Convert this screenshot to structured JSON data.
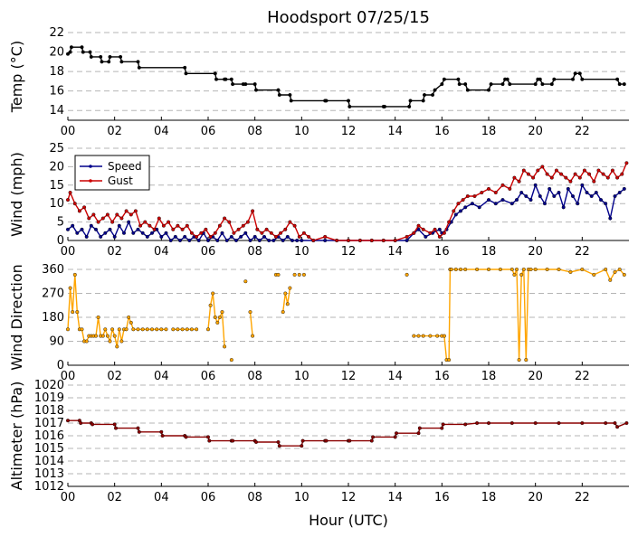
{
  "chart_data": {
    "type": "line",
    "title": "Hoodsport 07/25/15",
    "xlabel": "Hour (UTC)",
    "x_ticks": [
      "00",
      "02",
      "04",
      "06",
      "08",
      "10",
      "12",
      "14",
      "16",
      "18",
      "20",
      "22"
    ],
    "xlim": [
      0,
      24
    ],
    "panels": [
      {
        "name": "temp",
        "ylabel": "Temp (°C)",
        "ylim": [
          13,
          22
        ],
        "yticks": [
          14,
          16,
          18,
          20,
          22
        ],
        "series": [
          {
            "color": "#000000",
            "x": [
              0.0,
              0.1,
              0.15,
              0.6,
              0.65,
              0.95,
              1.0,
              1.4,
              1.45,
              1.75,
              1.8,
              2.25,
              2.3,
              3.0,
              3.05,
              5.0,
              5.05,
              6.3,
              6.35,
              6.7,
              6.75,
              7.0,
              7.05,
              7.5,
              7.6,
              8.0,
              8.05,
              9.0,
              9.05,
              9.5,
              9.55,
              11.0,
              11.05,
              12.0,
              12.05,
              13.5,
              13.55,
              14.6,
              14.65,
              15.2,
              15.25,
              15.6,
              15.7,
              16.0,
              16.1,
              16.7,
              16.75,
              17.0,
              17.1,
              18.0,
              18.1,
              18.6,
              18.7,
              18.8,
              18.9,
              20.0,
              20.1,
              20.2,
              20.3,
              20.7,
              20.8,
              21.6,
              21.7,
              21.9,
              22.0,
              23.5,
              23.6,
              23.8
            ],
            "y": [
              19.8,
              20.0,
              20.5,
              20.5,
              20.0,
              20.0,
              19.5,
              19.5,
              19.0,
              19.0,
              19.5,
              19.5,
              19.0,
              19.0,
              18.4,
              18.4,
              17.8,
              17.8,
              17.2,
              17.2,
              17.2,
              17.2,
              16.7,
              16.7,
              16.7,
              16.7,
              16.1,
              16.1,
              15.6,
              15.6,
              15.0,
              15.0,
              15.0,
              15.0,
              14.4,
              14.4,
              14.4,
              14.4,
              15.0,
              15.0,
              15.6,
              15.6,
              16.1,
              16.7,
              17.2,
              17.2,
              16.7,
              16.7,
              16.1,
              16.1,
              16.7,
              16.7,
              17.2,
              17.2,
              16.7,
              16.7,
              17.2,
              17.2,
              16.7,
              16.7,
              17.2,
              17.2,
              17.8,
              17.8,
              17.2,
              17.2,
              16.7,
              16.7
            ]
          }
        ]
      },
      {
        "name": "wind",
        "ylabel": "Wind (mph)",
        "ylim": [
          0,
          25
        ],
        "yticks": [
          0,
          5,
          10,
          15,
          20,
          25
        ],
        "legend": "top-left",
        "series": [
          {
            "name": "Speed",
            "color": "#00008b",
            "x": [
              0.0,
              0.2,
              0.4,
              0.6,
              0.8,
              1.0,
              1.2,
              1.4,
              1.6,
              1.8,
              2.0,
              2.2,
              2.4,
              2.6,
              2.8,
              3.0,
              3.2,
              3.4,
              3.6,
              3.8,
              4.0,
              4.2,
              4.4,
              4.6,
              4.8,
              5.0,
              5.2,
              5.4,
              5.6,
              5.8,
              6.0,
              6.2,
              6.4,
              6.6,
              6.8,
              7.0,
              7.2,
              7.4,
              7.6,
              7.8,
              8.0,
              8.2,
              8.4,
              8.6,
              8.8,
              9.0,
              9.2,
              9.4,
              9.6,
              9.8,
              10.0,
              10.5,
              11.0,
              11.5,
              12.0,
              12.5,
              13.0,
              13.5,
              14.0,
              14.5,
              14.8,
              15.0,
              15.3,
              15.6,
              15.9,
              16.0,
              16.2,
              16.4,
              16.6,
              16.8,
              17.0,
              17.3,
              17.6,
              18.0,
              18.3,
              18.6,
              19.0,
              19.2,
              19.4,
              19.6,
              19.8,
              20.0,
              20.2,
              20.4,
              20.6,
              20.8,
              21.0,
              21.2,
              21.4,
              21.6,
              21.8,
              22.0,
              22.2,
              22.4,
              22.6,
              22.8,
              23.0,
              23.2,
              23.4,
              23.6,
              23.8
            ],
            "y": [
              3,
              4,
              2,
              3,
              1,
              4,
              3,
              1,
              2,
              3,
              1,
              4,
              2,
              5,
              2,
              3,
              2,
              1,
              2,
              3,
              1,
              2,
              0,
              1,
              0,
              1,
              0,
              1,
              0,
              2,
              0,
              1,
              0,
              2,
              0,
              1,
              0,
              1,
              2,
              0,
              1,
              0,
              1,
              0,
              0,
              1,
              0,
              1,
              0,
              0,
              0,
              0,
              0,
              0,
              0,
              0,
              0,
              0,
              0,
              0,
              2,
              3,
              1,
              2,
              3,
              2,
              3,
              5,
              7,
              8,
              9,
              10,
              9,
              11,
              10,
              11,
              10,
              11,
              13,
              12,
              11,
              15,
              12,
              10,
              14,
              12,
              13,
              9,
              14,
              12,
              10,
              15,
              13,
              12,
              13,
              11,
              10,
              6,
              12,
              13,
              14
            ]
          },
          {
            "name": "Gust",
            "color": "#cc0000",
            "x": [
              0.0,
              0.1,
              0.3,
              0.5,
              0.7,
              0.9,
              1.1,
              1.3,
              1.5,
              1.7,
              1.9,
              2.1,
              2.3,
              2.5,
              2.7,
              2.9,
              3.1,
              3.3,
              3.5,
              3.7,
              3.9,
              4.1,
              4.3,
              4.5,
              4.7,
              4.9,
              5.1,
              5.3,
              5.5,
              5.7,
              5.9,
              6.1,
              6.3,
              6.5,
              6.7,
              6.9,
              7.1,
              7.3,
              7.5,
              7.7,
              7.9,
              8.1,
              8.3,
              8.5,
              8.7,
              8.9,
              9.1,
              9.3,
              9.5,
              9.7,
              9.9,
              10.1,
              10.3,
              10.5,
              11.0,
              11.5,
              12.0,
              12.5,
              13.0,
              13.5,
              14.0,
              14.5,
              14.8,
              15.0,
              15.2,
              15.5,
              15.7,
              15.9,
              16.1,
              16.3,
              16.5,
              16.7,
              16.9,
              17.1,
              17.4,
              17.7,
              18.0,
              18.3,
              18.6,
              18.9,
              19.1,
              19.3,
              19.5,
              19.7,
              19.9,
              20.1,
              20.3,
              20.5,
              20.7,
              20.9,
              21.1,
              21.3,
              21.5,
              21.7,
              21.9,
              22.1,
              22.3,
              22.5,
              22.7,
              22.9,
              23.1,
              23.3,
              23.5,
              23.7,
              23.9
            ],
            "y": [
              11,
              13,
              10,
              8,
              9,
              6,
              7,
              5,
              6,
              7,
              5,
              7,
              6,
              8,
              7,
              8,
              4,
              5,
              4,
              3,
              6,
              4,
              5,
              3,
              4,
              3,
              4,
              2,
              1,
              2,
              3,
              1,
              2,
              4,
              6,
              5,
              2,
              3,
              4,
              5,
              8,
              3,
              2,
              3,
              2,
              1,
              2,
              3,
              5,
              4,
              1,
              2,
              1,
              0,
              1,
              0,
              0,
              0,
              0,
              0,
              0,
              1,
              2,
              4,
              3,
              2,
              3,
              1,
              2,
              5,
              8,
              10,
              11,
              12,
              12,
              13,
              14,
              13,
              15,
              14,
              17,
              16,
              19,
              18,
              17,
              19,
              20,
              18,
              17,
              19,
              18,
              17,
              16,
              18,
              17,
              19,
              18,
              16,
              19,
              18,
              17,
              19,
              17,
              18,
              21
            ]
          }
        ]
      },
      {
        "name": "direction",
        "ylabel": "Wind Direction",
        "ylim": [
          0,
          360
        ],
        "yticks": [
          0,
          90,
          180,
          270,
          360
        ],
        "series": [
          {
            "color": "#ffa500",
            "segments": [
              {
                "x": [
                  0.0,
                  0.1,
                  0.2,
                  0.3,
                  0.4,
                  0.5,
                  0.6,
                  0.7,
                  0.8,
                  0.9,
                  1.0,
                  1.1,
                  1.2,
                  1.3,
                  1.4,
                  1.5,
                  1.6,
                  1.7,
                  1.8,
                  1.9,
                  2.0,
                  2.1,
                  2.2,
                  2.3,
                  2.4,
                  2.5,
                  2.6,
                  2.7,
                  2.8,
                  3.0,
                  3.2,
                  3.4,
                  3.6,
                  3.8,
                  4.0,
                  4.2
                ],
                "y": [
                  135,
                  290,
                  200,
                  340,
                  200,
                  135,
                  135,
                  90,
                  90,
                  110,
                  110,
                  110,
                  110,
                  180,
                  110,
                  110,
                  135,
                  110,
                  90,
                  135,
                  110,
                  70,
                  135,
                  90,
                  135,
                  135,
                  180,
                  160,
                  135,
                  135,
                  135,
                  135,
                  135,
                  135,
                  135,
                  135
                ]
              },
              {
                "x": [
                  4.5,
                  4.7,
                  4.9,
                  5.1,
                  5.3,
                  5.5
                ],
                "y": [
                  135,
                  135,
                  135,
                  135,
                  135,
                  135
                ]
              },
              {
                "x": [
                  6.0,
                  6.1,
                  6.2,
                  6.3,
                  6.4,
                  6.5,
                  6.6,
                  6.7
                ],
                "y": [
                  135,
                  225,
                  270,
                  180,
                  160,
                  180,
                  200,
                  70
                ]
              },
              {
                "x": [
                  7.8,
                  7.9
                ],
                "y": [
                  200,
                  110
                ]
              },
              {
                "x": [
                  9.2,
                  9.3,
                  9.4,
                  9.5
                ],
                "y": [
                  200,
                  270,
                  230,
                  290
                ]
              }
            ],
            "points": [
              {
                "x": 7.0,
                "y": 20
              },
              {
                "x": 7.6,
                "y": 315
              },
              {
                "x": 8.9,
                "y": 340
              },
              {
                "x": 9.0,
                "y": 340
              },
              {
                "x": 9.9,
                "y": 340
              },
              {
                "x": 10.1,
                "y": 340
              },
              {
                "x": 14.5,
                "y": 340
              },
              {
                "x": 9.7,
                "y": 340
              }
            ],
            "tail": {
              "x": [
                14.8,
                15.0,
                15.2,
                15.5,
                15.8,
                16.0,
                16.1,
                16.2,
                16.3,
                16.35,
                16.4,
                16.6,
                16.8,
                17.0,
                17.5,
                18.0,
                18.5,
                19.0,
                19.1,
                19.2,
                19.3,
                19.4,
                19.5,
                19.6,
                19.7,
                19.8,
                20.0,
                20.5,
                21.0,
                21.5,
                22.0,
                22.5,
                23.0,
                23.2,
                23.4,
                23.6,
                23.8
              ],
              "y": [
                110,
                110,
                110,
                110,
                110,
                110,
                110,
                20,
                20,
                360,
                360,
                360,
                360,
                360,
                360,
                360,
                360,
                360,
                340,
                360,
                20,
                340,
                360,
                20,
                360,
                360,
                360,
                360,
                360,
                350,
                360,
                340,
                360,
                320,
                350,
                360,
                340
              ]
            }
          }
        ]
      },
      {
        "name": "altimeter",
        "ylabel": "Altimeter (hPa)",
        "ylim": [
          1012,
          1020
        ],
        "yticks": [
          1012,
          1013,
          1014,
          1015,
          1016,
          1017,
          1018,
          1019,
          1020
        ],
        "series": [
          {
            "color": "#8b0000",
            "x": [
              0.0,
              0.5,
              0.55,
              1.0,
              1.05,
              2.0,
              2.05,
              3.0,
              3.05,
              4.0,
              4.05,
              5.0,
              5.05,
              6.0,
              6.05,
              7.0,
              7.05,
              8.0,
              8.05,
              9.0,
              9.05,
              10.0,
              10.05,
              11.0,
              11.05,
              12.0,
              12.05,
              13.0,
              13.05,
              14.0,
              14.05,
              15.0,
              15.05,
              16.0,
              16.05,
              17.0,
              17.5,
              18.0,
              19.0,
              20.0,
              21.0,
              22.0,
              23.0,
              23.4,
              23.5,
              23.9
            ],
            "y": [
              1017.2,
              1017.2,
              1017.0,
              1017.0,
              1016.9,
              1016.9,
              1016.6,
              1016.6,
              1016.3,
              1016.3,
              1016.0,
              1016.0,
              1015.9,
              1015.9,
              1015.6,
              1015.6,
              1015.6,
              1015.6,
              1015.5,
              1015.5,
              1015.2,
              1015.2,
              1015.6,
              1015.6,
              1015.6,
              1015.6,
              1015.6,
              1015.6,
              1015.9,
              1015.9,
              1016.2,
              1016.2,
              1016.6,
              1016.6,
              1016.9,
              1016.9,
              1017.0,
              1017.0,
              1017.0,
              1017.0,
              1017.0,
              1017.0,
              1017.0,
              1017.0,
              1016.7,
              1017.0
            ]
          }
        ]
      }
    ]
  }
}
